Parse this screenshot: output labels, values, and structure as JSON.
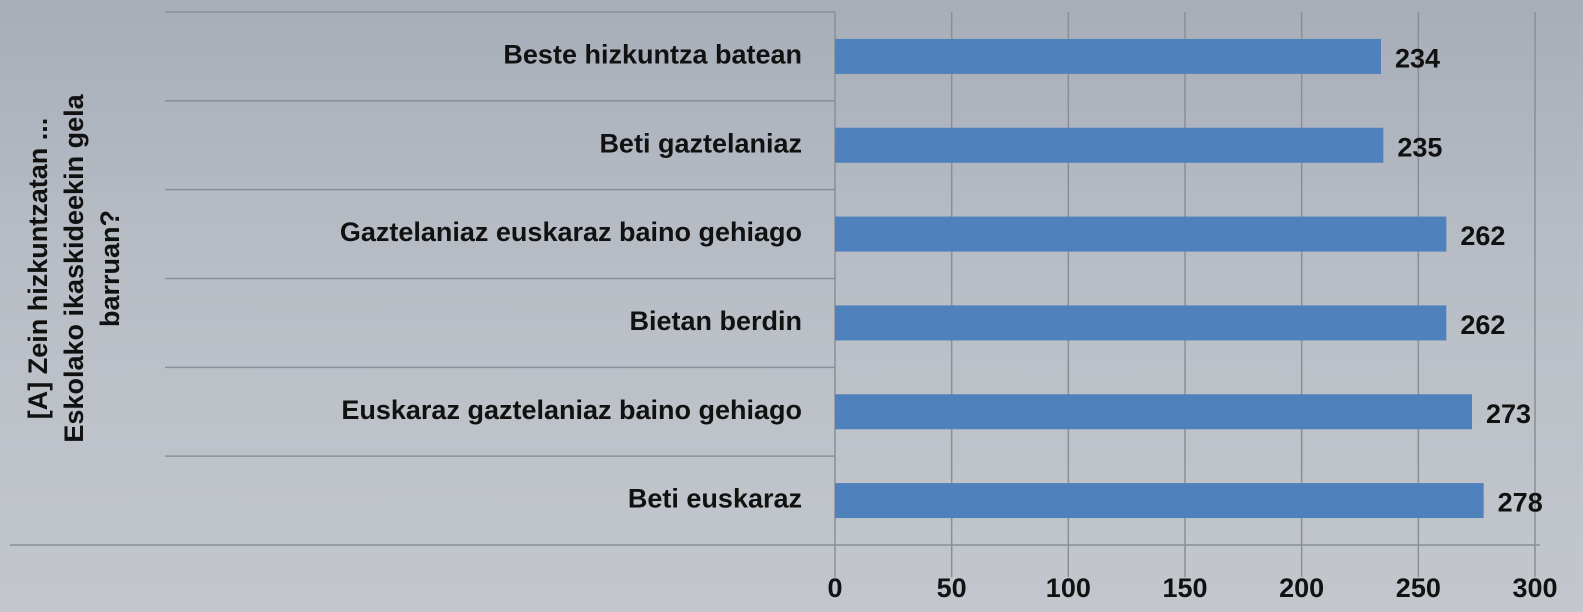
{
  "chart_data": {
    "type": "bar",
    "orientation": "horizontal",
    "ylabel": [
      "[A] Zein hizkuntzatan ...",
      "Eskolako ikaskideekin gela",
      "barruan?"
    ],
    "categories": [
      "Beste hizkuntza batean",
      "Beti gaztelaniaz",
      "Gaztelaniaz euskaraz baino gehiago",
      "Bietan berdin",
      "Euskaraz gaztelaniaz baino gehiago",
      "Beti euskaraz"
    ],
    "values": [
      234,
      235,
      262,
      262,
      273,
      278
    ],
    "color": "#4f81bd",
    "xlim": [
      0,
      300
    ],
    "xticks": [
      0,
      50,
      100,
      150,
      200,
      250,
      300
    ],
    "grid": true
  }
}
